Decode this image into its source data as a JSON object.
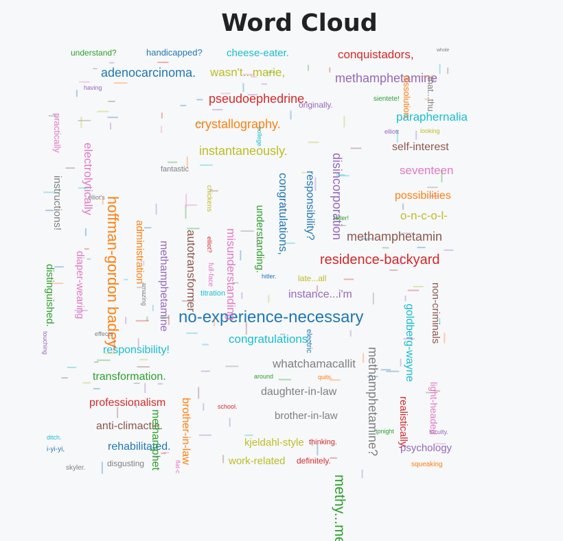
{
  "chart_data": {
    "type": "wordcloud",
    "title": "Word Cloud",
    "words": [
      {
        "text": "no-experience-necessary",
        "color": "#1f77b4",
        "size": 24,
        "rotate": 0
      },
      {
        "text": "methy...meth",
        "color": "#2ca02c",
        "size": 21,
        "rotate": 90
      },
      {
        "text": "hoffman-gordon badey",
        "color": "#ff7f0e",
        "size": 22,
        "rotate": 90
      },
      {
        "text": "residence-backyard",
        "color": "#d62728",
        "size": 20,
        "rotate": 0
      },
      {
        "text": "methamphetamine",
        "color": "#9467bd",
        "size": 18,
        "rotate": 0
      },
      {
        "text": "methamphetamin",
        "color": "#8c564b",
        "size": 18,
        "rotate": 0
      },
      {
        "text": "seventeen",
        "color": "#e377c2",
        "size": 17,
        "rotate": 0
      },
      {
        "text": "whatchamacallit",
        "color": "#7f7f7f",
        "size": 17,
        "rotate": 0
      },
      {
        "text": "instantaneously.",
        "color": "#bcbd22",
        "size": 18,
        "rotate": 0
      },
      {
        "text": "paraphernalia",
        "color": "#17becf",
        "size": 17,
        "rotate": 0
      },
      {
        "text": "adenocarcinoma.",
        "color": "#1f77b4",
        "size": 18,
        "rotate": 0
      },
      {
        "text": "conquistadors,",
        "color": "#d62728",
        "size": 17,
        "rotate": 0
      },
      {
        "text": "pseudoephedrine.",
        "color": "#d62728",
        "size": 18,
        "rotate": 0
      },
      {
        "text": "crystallography.",
        "color": "#ff7f0e",
        "size": 18,
        "rotate": 0
      },
      {
        "text": "wasn't...marie,",
        "color": "#bcbd22",
        "size": 17,
        "rotate": 0
      },
      {
        "text": "cheese-eater.",
        "color": "#17becf",
        "size": 15,
        "rotate": 0
      },
      {
        "text": "handicapped?",
        "color": "#1f77b4",
        "size": 13,
        "rotate": 0
      },
      {
        "text": "understand?",
        "color": "#2ca02c",
        "size": 12,
        "rotate": 0
      },
      {
        "text": "self-interest",
        "color": "#8c564b",
        "size": 16,
        "rotate": 0
      },
      {
        "text": "possibilities",
        "color": "#ff7f0e",
        "size": 16,
        "rotate": 0
      },
      {
        "text": "o-n-c-o-l-",
        "color": "#bcbd22",
        "size": 17,
        "rotate": 0
      },
      {
        "text": "instance...i'm",
        "color": "#9467bd",
        "size": 16,
        "rotate": 0
      },
      {
        "text": "congratulations.",
        "color": "#17becf",
        "size": 17,
        "rotate": 0
      },
      {
        "text": "responsibility!",
        "color": "#17becf",
        "size": 16,
        "rotate": 0
      },
      {
        "text": "transformation.",
        "color": "#2ca02c",
        "size": 16,
        "rotate": 0
      },
      {
        "text": "professionalism",
        "color": "#d62728",
        "size": 16,
        "rotate": 0
      },
      {
        "text": "anti-climactic.",
        "color": "#8c564b",
        "size": 16,
        "rotate": 0
      },
      {
        "text": "rehabilitated.",
        "color": "#1f77b4",
        "size": 16,
        "rotate": 0
      },
      {
        "text": "daughter-in-law",
        "color": "#7f7f7f",
        "size": 16,
        "rotate": 0
      },
      {
        "text": "brother-in-law",
        "color": "#7f7f7f",
        "size": 15,
        "rotate": 0
      },
      {
        "text": "kjeldahl-style",
        "color": "#bcbd22",
        "size": 15,
        "rotate": 0
      },
      {
        "text": "work-related",
        "color": "#bcbd22",
        "size": 15,
        "rotate": 0
      },
      {
        "text": "psychology",
        "color": "#9467bd",
        "size": 15,
        "rotate": 0
      },
      {
        "text": "disgusting",
        "color": "#7f7f7f",
        "size": 12,
        "rotate": 0
      },
      {
        "text": "definitely.",
        "color": "#d62728",
        "size": 12,
        "rotate": 0
      },
      {
        "text": "originally.",
        "color": "#9467bd",
        "size": 12,
        "rotate": 0
      },
      {
        "text": "fantastic",
        "color": "#7f7f7f",
        "size": 11,
        "rotate": 0
      },
      {
        "text": "late...all",
        "color": "#bcbd22",
        "size": 12,
        "rotate": 0
      },
      {
        "text": "titration",
        "color": "#17becf",
        "size": 11,
        "rotate": 0
      },
      {
        "text": "squeaking",
        "color": "#ff7f0e",
        "size": 10,
        "rotate": 0
      },
      {
        "text": "i-yi-yi,",
        "color": "#1f77b4",
        "size": 10,
        "rotate": 0
      },
      {
        "text": "skyler.",
        "color": "#7f7f7f",
        "size": 10,
        "rotate": 0
      },
      {
        "text": "thinking.",
        "color": "#d62728",
        "size": 11,
        "rotate": 0
      },
      {
        "text": "sientete!",
        "color": "#2ca02c",
        "size": 10,
        "rotate": 0
      },
      {
        "text": "school.",
        "color": "#d62728",
        "size": 9,
        "rotate": 0
      },
      {
        "text": "around",
        "color": "#2ca02c",
        "size": 9,
        "rotate": 0
      },
      {
        "text": "faculty.",
        "color": "#9467bd",
        "size": 9,
        "rotate": 0
      },
      {
        "text": "effects",
        "color": "#7f7f7f",
        "size": 9,
        "rotate": 0
      },
      {
        "text": "having",
        "color": "#9467bd",
        "size": 9,
        "rotate": 0
      },
      {
        "text": "elliott",
        "color": "#9467bd",
        "size": 9,
        "rotate": 0
      },
      {
        "text": "looking",
        "color": "#bcbd22",
        "size": 9,
        "rotate": 0
      },
      {
        "text": "tonight",
        "color": "#2ca02c",
        "size": 9,
        "rotate": 0
      },
      {
        "text": "ditch.",
        "color": "#17becf",
        "size": 9,
        "rotate": 0
      },
      {
        "text": "quits.",
        "color": "#ff7f0e",
        "size": 9,
        "rotate": 0
      },
      {
        "text": "hitler.",
        "color": "#1f77b4",
        "size": 9,
        "rotate": 0
      },
      {
        "text": "whole",
        "color": "#7f7f7f",
        "size": 7,
        "rotate": 0
      },
      {
        "text": "electrolytically",
        "color": "#e377c2",
        "size": 17,
        "rotate": 90
      },
      {
        "text": "instructions!",
        "color": "#7f7f7f",
        "size": 15,
        "rotate": 90
      },
      {
        "text": "practically",
        "color": "#e377c2",
        "size": 13,
        "rotate": 90
      },
      {
        "text": "distinguished.",
        "color": "#2ca02c",
        "size": 15,
        "rotate": 90
      },
      {
        "text": "diaper-wearing",
        "color": "#e377c2",
        "size": 15,
        "rotate": 90
      },
      {
        "text": "administration",
        "color": "#ff7f0e",
        "size": 15,
        "rotate": 90
      },
      {
        "text": "methamphetamine",
        "color": "#9467bd",
        "size": 16,
        "rotate": 90
      },
      {
        "text": "autotransformer",
        "color": "#8c564b",
        "size": 17,
        "rotate": 90
      },
      {
        "text": "misunderstanding",
        "color": "#e377c2",
        "size": 17,
        "rotate": 90
      },
      {
        "text": "understanding.",
        "color": "#2ca02c",
        "size": 15,
        "rotate": 90
      },
      {
        "text": "congratulations,",
        "color": "#1f77b4",
        "size": 17,
        "rotate": 90
      },
      {
        "text": "responsibility?",
        "color": "#1f77b4",
        "size": 16,
        "rotate": 90
      },
      {
        "text": "disincorporation",
        "color": "#9467bd",
        "size": 18,
        "rotate": 90
      },
      {
        "text": "methamphetamine?",
        "color": "#7f7f7f",
        "size": 18,
        "rotate": 90
      },
      {
        "text": "goldberg-wayne",
        "color": "#17becf",
        "size": 16,
        "rotate": 90
      },
      {
        "text": "non-criminals",
        "color": "#8c564b",
        "size": 15,
        "rotate": 90
      },
      {
        "text": "realistically,",
        "color": "#d62728",
        "size": 15,
        "rotate": 90
      },
      {
        "text": "light-headed",
        "color": "#e377c2",
        "size": 14,
        "rotate": 90
      },
      {
        "text": "brother-in-law",
        "color": "#ff7f0e",
        "size": 16,
        "rotate": 90
      },
      {
        "text": "methamphet",
        "color": "#2ca02c",
        "size": 16,
        "rotate": 90
      },
      {
        "text": "dissolution.",
        "color": "#ff7f0e",
        "size": 13,
        "rotate": 90
      },
      {
        "text": "that...thu",
        "color": "#7f7f7f",
        "size": 13,
        "rotate": 90
      },
      {
        "text": "electric",
        "color": "#1f77b4",
        "size": 11,
        "rotate": 90
      },
      {
        "text": "chickens",
        "color": "#bcbd22",
        "size": 10,
        "rotate": 90
      },
      {
        "text": "elliot?",
        "color": "#d62728",
        "size": 9,
        "rotate": 90
      },
      {
        "text": "full-face",
        "color": "#e377c2",
        "size": 10,
        "rotate": 90
      },
      {
        "text": "flat-c",
        "color": "#e377c2",
        "size": 9,
        "rotate": 90
      },
      {
        "text": "college",
        "color": "#17becf",
        "size": 9,
        "rotate": 90
      },
      {
        "text": "touching",
        "color": "#9467bd",
        "size": 9,
        "rotate": 90
      },
      {
        "text": "amazing",
        "color": "#7f7f7f",
        "size": 9,
        "rotate": 90
      },
      {
        "text": "elliot's",
        "color": "#7f7f7f",
        "size": 9,
        "rotate": 0
      },
      {
        "text": "hitler!",
        "color": "#2ca02c",
        "size": 9,
        "rotate": 0
      }
    ]
  }
}
